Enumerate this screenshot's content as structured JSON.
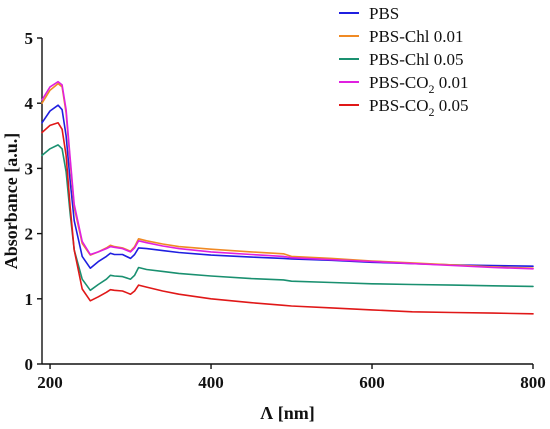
{
  "chart_data": {
    "type": "line",
    "title": "",
    "xlabel": "Λ [nm]",
    "ylabel": "Absorbance [a.u.]",
    "xlim": [
      190,
      800
    ],
    "ylim": [
      0,
      5
    ],
    "x_ticks": [
      200,
      400,
      600,
      800
    ],
    "y_ticks": [
      0,
      1,
      2,
      3,
      4,
      5
    ],
    "grid": false,
    "legend_position": "top-right",
    "x": [
      190,
      200,
      210,
      215,
      220,
      225,
      230,
      240,
      250,
      260,
      270,
      275,
      280,
      290,
      300,
      305,
      310,
      320,
      340,
      360,
      400,
      450,
      490,
      500,
      550,
      600,
      650,
      700,
      750,
      800
    ],
    "series": [
      {
        "name": "PBS",
        "name_main": "PBS",
        "name_sub": "",
        "name_tail": "",
        "color": "#1f1fe0",
        "values": [
          3.7,
          3.88,
          3.97,
          3.9,
          3.5,
          2.8,
          2.2,
          1.65,
          1.47,
          1.57,
          1.65,
          1.7,
          1.68,
          1.68,
          1.62,
          1.68,
          1.78,
          1.77,
          1.74,
          1.71,
          1.67,
          1.64,
          1.62,
          1.61,
          1.59,
          1.56,
          1.54,
          1.52,
          1.51,
          1.5
        ]
      },
      {
        "name": "PBS-Chl 0.01",
        "name_main": "PBS-Chl 0.01",
        "name_sub": "",
        "name_tail": "",
        "color": "#f08a24",
        "values": [
          4.0,
          4.2,
          4.3,
          4.25,
          3.85,
          3.1,
          2.4,
          1.85,
          1.67,
          1.72,
          1.78,
          1.82,
          1.8,
          1.78,
          1.73,
          1.8,
          1.92,
          1.89,
          1.84,
          1.8,
          1.76,
          1.72,
          1.69,
          1.65,
          1.62,
          1.58,
          1.55,
          1.52,
          1.49,
          1.47
        ]
      },
      {
        "name": "PBS-Chl 0.05",
        "name_main": "PBS-Chl 0.05",
        "name_sub": "",
        "name_tail": "",
        "color": "#1a9070",
        "values": [
          3.2,
          3.3,
          3.36,
          3.3,
          2.95,
          2.3,
          1.75,
          1.3,
          1.13,
          1.22,
          1.3,
          1.36,
          1.35,
          1.34,
          1.3,
          1.36,
          1.48,
          1.45,
          1.42,
          1.39,
          1.35,
          1.31,
          1.29,
          1.27,
          1.25,
          1.23,
          1.22,
          1.21,
          1.2,
          1.19
        ]
      },
      {
        "name": "PBS-CO2 0.01",
        "name_main": "PBS-CO",
        "name_sub": "2",
        "name_tail": " 0.01",
        "color": "#e020e0",
        "values": [
          4.05,
          4.25,
          4.33,
          4.28,
          3.9,
          3.15,
          2.45,
          1.88,
          1.68,
          1.72,
          1.77,
          1.8,
          1.79,
          1.77,
          1.72,
          1.78,
          1.89,
          1.86,
          1.81,
          1.77,
          1.72,
          1.68,
          1.65,
          1.63,
          1.6,
          1.57,
          1.54,
          1.51,
          1.48,
          1.46
        ]
      },
      {
        "name": "PBS-CO2 0.05",
        "name_main": "PBS-CO",
        "name_sub": "2",
        "name_tail": " 0.05",
        "color": "#e01818",
        "values": [
          3.55,
          3.66,
          3.7,
          3.6,
          3.2,
          2.4,
          1.75,
          1.15,
          0.97,
          1.03,
          1.1,
          1.14,
          1.13,
          1.12,
          1.07,
          1.12,
          1.21,
          1.18,
          1.12,
          1.07,
          1.0,
          0.94,
          0.9,
          0.89,
          0.86,
          0.83,
          0.8,
          0.79,
          0.78,
          0.77
        ]
      }
    ]
  }
}
